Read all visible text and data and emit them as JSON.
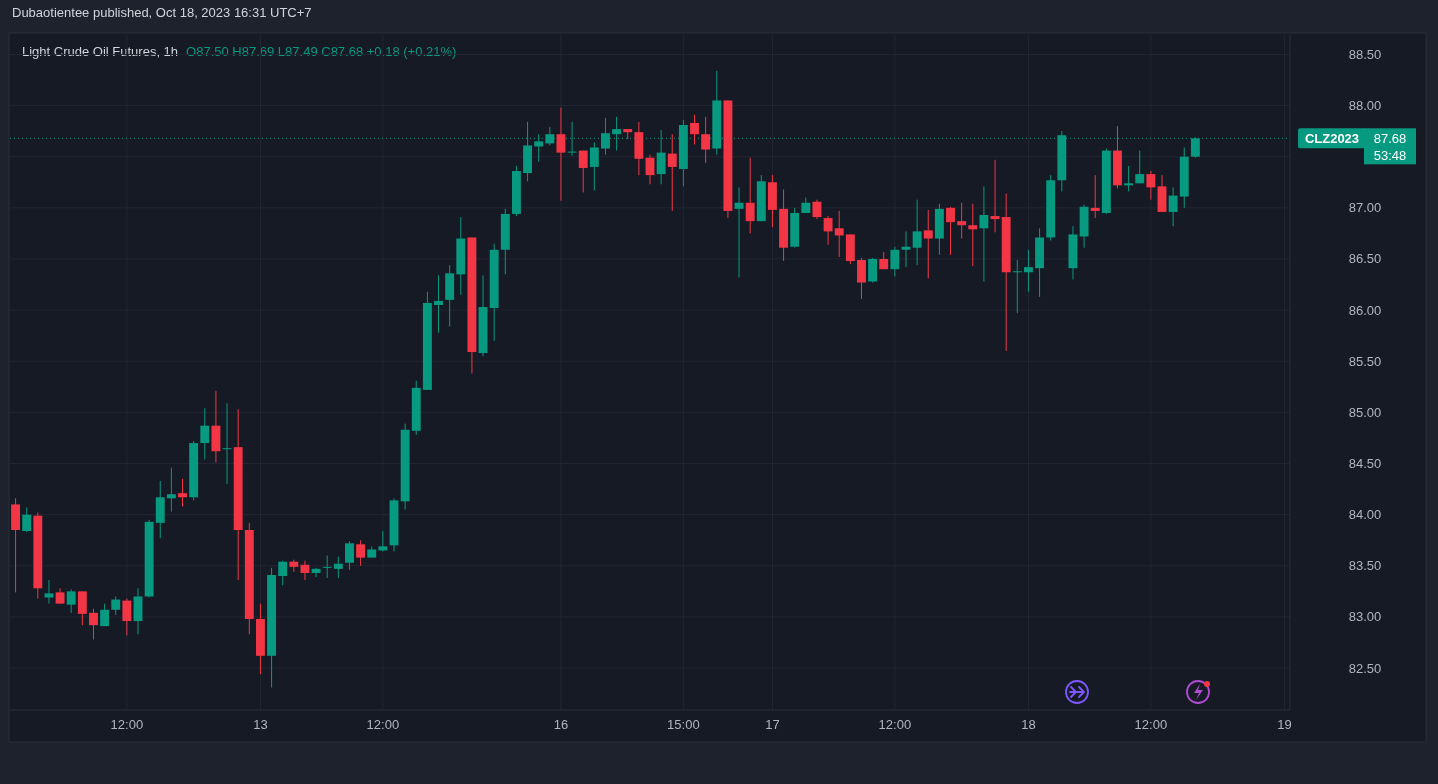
{
  "chart_data": {
    "type": "candlestick",
    "title": "Light Crude Oil Futures, 1h",
    "subtitle": "O87.50 H87.69 L87.49 C87.68 +0.18 (+0.21%)",
    "annotations": [
      "Dubaotientee published, Oct 18, 2023 16:31 UTC+7",
      "87.68",
      "53:48"
    ],
    "categories": [
      null,
      null,
      null,
      null,
      null,
      null,
      null,
      null,
      null,
      null,
      "12:00",
      null,
      null,
      null,
      null,
      null,
      null,
      null,
      null,
      null,
      null,
      null,
      "13",
      null,
      null,
      null,
      null,
      null,
      null,
      null,
      null,
      null,
      null,
      "12:00",
      null,
      null,
      null,
      null,
      null,
      null,
      null,
      null,
      null,
      null,
      null,
      null,
      null,
      null,
      null,
      "16",
      null,
      null,
      null,
      null,
      null,
      null,
      null,
      null,
      null,
      null,
      "15:00",
      null,
      null,
      null,
      null,
      null,
      null,
      null,
      "17",
      null,
      null,
      null,
      null,
      null,
      null,
      null,
      null,
      null,
      null,
      "12:00",
      null,
      null,
      null,
      null,
      null,
      null,
      null,
      null,
      null,
      null,
      null,
      "18",
      null,
      null,
      null,
      null,
      null,
      null,
      null,
      null,
      null,
      null,
      "12:00",
      null,
      null,
      null,
      null,
      null,
      null,
      null,
      null,
      null,
      null,
      null,
      "19"
    ],
    "ohlc": [
      [
        84.1,
        84.16,
        83.24,
        83.85
      ],
      [
        83.84,
        84.07,
        83.83,
        84.0
      ],
      [
        83.99,
        84.02,
        83.18,
        83.28
      ],
      [
        83.19,
        83.36,
        83.13,
        83.23
      ],
      [
        83.24,
        83.28,
        83.13,
        83.13
      ],
      [
        83.12,
        83.27,
        83.04,
        83.25
      ],
      [
        83.25,
        83.25,
        82.92,
        83.03
      ],
      [
        83.04,
        83.08,
        82.78,
        82.92
      ],
      [
        82.91,
        83.13,
        82.91,
        83.07
      ],
      [
        83.07,
        83.2,
        83.02,
        83.17
      ],
      [
        83.16,
        83.18,
        82.82,
        82.96
      ],
      [
        82.96,
        83.28,
        82.83,
        83.2
      ],
      [
        83.2,
        83.95,
        83.19,
        83.93
      ],
      [
        83.92,
        84.33,
        83.77,
        84.17
      ],
      [
        84.16,
        84.46,
        84.03,
        84.2
      ],
      [
        84.21,
        84.35,
        84.08,
        84.17
      ],
      [
        84.17,
        84.72,
        84.14,
        84.7
      ],
      [
        84.7,
        85.04,
        84.54,
        84.87
      ],
      [
        84.87,
        85.21,
        84.51,
        84.62
      ],
      [
        84.64,
        85.09,
        84.3,
        84.65
      ],
      [
        84.66,
        85.03,
        83.36,
        83.85
      ],
      [
        83.85,
        83.92,
        82.83,
        82.98
      ],
      [
        82.98,
        83.13,
        82.44,
        82.62
      ],
      [
        82.62,
        83.48,
        82.31,
        83.41
      ],
      [
        83.4,
        83.55,
        83.31,
        83.54
      ],
      [
        83.54,
        83.56,
        83.44,
        83.49
      ],
      [
        83.51,
        83.55,
        83.36,
        83.43
      ],
      [
        83.43,
        83.48,
        83.39,
        83.47
      ],
      [
        83.48,
        83.6,
        83.38,
        83.49
      ],
      [
        83.47,
        83.59,
        83.38,
        83.52
      ],
      [
        83.53,
        83.74,
        83.46,
        83.72
      ],
      [
        83.71,
        83.75,
        83.5,
        83.58
      ],
      [
        83.58,
        83.69,
        83.58,
        83.66
      ],
      [
        83.65,
        83.84,
        83.64,
        83.69
      ],
      [
        83.7,
        84.16,
        83.64,
        84.14
      ],
      [
        84.13,
        84.89,
        84.05,
        84.83
      ],
      [
        84.82,
        85.31,
        84.78,
        85.24
      ],
      [
        85.22,
        86.18,
        85.22,
        86.07
      ],
      [
        86.05,
        86.34,
        85.78,
        86.09
      ],
      [
        86.1,
        86.44,
        85.84,
        86.36
      ],
      [
        86.35,
        86.91,
        86.15,
        86.7
      ],
      [
        86.71,
        86.71,
        85.38,
        85.59
      ],
      [
        85.58,
        86.34,
        85.55,
        86.03
      ],
      [
        86.02,
        86.65,
        85.7,
        86.59
      ],
      [
        86.59,
        86.99,
        86.35,
        86.94
      ],
      [
        86.94,
        87.41,
        86.92,
        87.36
      ],
      [
        87.34,
        87.84,
        87.26,
        87.61
      ],
      [
        87.6,
        87.72,
        87.45,
        87.65
      ],
      [
        87.63,
        87.79,
        87.61,
        87.72
      ],
      [
        87.72,
        87.98,
        87.07,
        87.54
      ],
      [
        87.54,
        87.84,
        87.51,
        87.55
      ],
      [
        87.56,
        87.56,
        87.15,
        87.39
      ],
      [
        87.4,
        87.64,
        87.17,
        87.59
      ],
      [
        87.58,
        87.88,
        87.52,
        87.73
      ],
      [
        87.72,
        87.89,
        87.56,
        87.77
      ],
      [
        87.77,
        87.77,
        87.67,
        87.74
      ],
      [
        87.74,
        87.84,
        87.32,
        87.48
      ],
      [
        87.49,
        87.52,
        87.23,
        87.32
      ],
      [
        87.33,
        87.76,
        87.23,
        87.54
      ],
      [
        87.53,
        87.72,
        86.97,
        87.4
      ],
      [
        87.38,
        87.86,
        87.21,
        87.81
      ],
      [
        87.83,
        87.91,
        87.62,
        87.72
      ],
      [
        87.72,
        87.89,
        87.44,
        87.57
      ],
      [
        87.58,
        88.34,
        87.52,
        88.05
      ],
      [
        88.05,
        88.05,
        86.9,
        86.97
      ],
      [
        86.99,
        87.2,
        86.32,
        87.05
      ],
      [
        87.05,
        87.49,
        86.75,
        86.87
      ],
      [
        86.87,
        87.32,
        86.87,
        87.26
      ],
      [
        87.25,
        87.32,
        86.81,
        86.98
      ],
      [
        86.99,
        87.18,
        86.48,
        86.61
      ],
      [
        86.62,
        87.0,
        86.61,
        86.95
      ],
      [
        86.95,
        87.1,
        86.95,
        87.05
      ],
      [
        87.06,
        87.08,
        86.89,
        86.91
      ],
      [
        86.9,
        86.92,
        86.64,
        86.77
      ],
      [
        86.8,
        86.97,
        86.52,
        86.73
      ],
      [
        86.74,
        86.74,
        86.45,
        86.48
      ],
      [
        86.49,
        86.51,
        86.11,
        86.27
      ],
      [
        86.28,
        86.51,
        86.27,
        86.5
      ],
      [
        86.5,
        86.57,
        86.4,
        86.4
      ],
      [
        86.4,
        86.62,
        86.33,
        86.59
      ],
      [
        86.59,
        86.77,
        86.42,
        86.62
      ],
      [
        86.61,
        87.08,
        86.44,
        86.77
      ],
      [
        86.78,
        86.98,
        86.31,
        86.7
      ],
      [
        86.7,
        87.04,
        86.54,
        86.99
      ],
      [
        87.0,
        87.01,
        86.54,
        86.86
      ],
      [
        86.87,
        87.05,
        86.7,
        86.83
      ],
      [
        86.83,
        87.04,
        86.43,
        86.79
      ],
      [
        86.8,
        87.21,
        86.28,
        86.93
      ],
      [
        86.92,
        87.47,
        86.76,
        86.89
      ],
      [
        86.91,
        87.14,
        85.6,
        86.37
      ],
      [
        86.37,
        86.49,
        85.97,
        86.38
      ],
      [
        86.37,
        86.59,
        86.18,
        86.42
      ],
      [
        86.41,
        86.8,
        86.13,
        86.71
      ],
      [
        86.71,
        87.32,
        86.68,
        87.27
      ],
      [
        87.27,
        87.75,
        87.16,
        87.71
      ],
      [
        86.41,
        86.82,
        86.3,
        86.74
      ],
      [
        86.72,
        87.03,
        86.61,
        87.01
      ],
      [
        87.0,
        87.32,
        86.9,
        86.97
      ],
      [
        86.95,
        87.58,
        86.94,
        87.56
      ],
      [
        87.56,
        87.8,
        87.19,
        87.22
      ],
      [
        87.22,
        87.41,
        87.16,
        87.24
      ],
      [
        87.24,
        87.56,
        87.24,
        87.33
      ],
      [
        87.33,
        87.36,
        87.08,
        87.2
      ],
      [
        87.21,
        87.32,
        86.96,
        86.96
      ],
      [
        86.96,
        87.2,
        86.82,
        87.12
      ],
      [
        87.11,
        87.59,
        87.0,
        87.5
      ],
      [
        87.5,
        87.69,
        87.49,
        87.68
      ],
      null,
      null,
      null,
      null,
      null,
      null,
      null,
      null
    ],
    "ylim": [
      82.09,
      88.69
    ],
    "yticks": [
      {
        "value": 82.5,
        "label": "82.50"
      },
      {
        "value": 83,
        "label": "83.00"
      },
      {
        "value": 83.5,
        "label": "83.50"
      },
      {
        "value": 84,
        "label": "84.00"
      },
      {
        "value": 84.5,
        "label": "84.50"
      },
      {
        "value": 85,
        "label": "85.00"
      },
      {
        "value": 85.5,
        "label": "85.50"
      },
      {
        "value": 86,
        "label": "86.00"
      },
      {
        "value": 86.5,
        "label": "86.50"
      },
      {
        "value": 87,
        "label": "87.00"
      },
      {
        "value": 87.5,
        "label": null
      },
      {
        "value": 88,
        "label": "88.00"
      },
      {
        "value": 88.5,
        "label": "88.50"
      }
    ],
    "ref_lines": [
      {
        "axis": "y",
        "value": 87.68,
        "label": "CLZ2023",
        "color": "#089981",
        "line_style": "dotted"
      }
    ],
    "grid": true
  }
}
